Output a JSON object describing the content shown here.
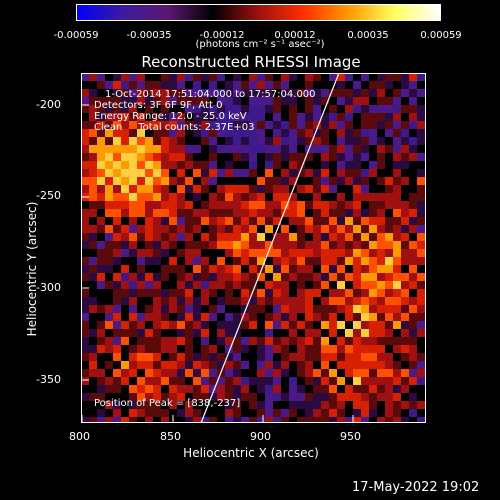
{
  "title": "Reconstructed RHESSI Image",
  "colorbar": {
    "ticks": [
      "-0.00059",
      "-0.00035",
      "-0.00012",
      "0.00012",
      "0.00035",
      "0.00059"
    ],
    "units": "(photons cm⁻² s⁻¹ asec⁻²)",
    "colors": [
      "#0000ff",
      "#3c1aa0",
      "#5a1870",
      "#000000",
      "#a01010",
      "#ff3000",
      "#ff9a00",
      "#ffff60",
      "#ffffff"
    ]
  },
  "annotations": {
    "time": "1-Oct-2014 17:51:04.000 to 17:57:04.000",
    "detectors": "Detectors: 3F 6F 9F, Att 0",
    "energy": "Energy Range: 12.0 - 25.0 keV",
    "clean": "Clean     Total counts: 2.37E+03",
    "peak": "Position of Peak = [838,-237]"
  },
  "axes": {
    "xlabel": "Heliocentric X (arcsec)",
    "ylabel": "Heliocentric Y (arcsec)",
    "xticks": [
      "800",
      "850",
      "900",
      "950"
    ],
    "yticks": [
      "-200",
      "-250",
      "-300",
      "-350"
    ]
  },
  "footer": "17-May-2022 19:02"
}
